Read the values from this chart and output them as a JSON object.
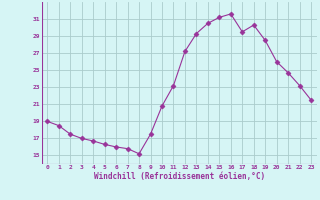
{
  "x": [
    0,
    1,
    2,
    3,
    4,
    5,
    6,
    7,
    8,
    9,
    10,
    11,
    12,
    13,
    14,
    15,
    16,
    17,
    18,
    19,
    20,
    21,
    22,
    23
  ],
  "y": [
    19,
    18.5,
    17.5,
    17,
    16.7,
    16.3,
    16,
    15.8,
    15.2,
    17.5,
    20.8,
    23.2,
    27.2,
    29.3,
    30.5,
    31.2,
    31.6,
    29.5,
    30.3,
    28.5,
    26,
    24.7,
    23.2,
    21.5
  ],
  "line_color": "#993399",
  "marker": "D",
  "marker_size": 2.5,
  "bg_color": "#d6f5f5",
  "grid_color": "#aacccc",
  "xlabel": "Windchill (Refroidissement éolien,°C)",
  "xlabel_color": "#993399",
  "tick_color": "#993399",
  "ylim": [
    14,
    33
  ],
  "yticks": [
    15,
    17,
    19,
    21,
    23,
    25,
    27,
    29,
    31
  ],
  "xlim": [
    -0.5,
    23.5
  ],
  "xticks": [
    0,
    1,
    2,
    3,
    4,
    5,
    6,
    7,
    8,
    9,
    10,
    11,
    12,
    13,
    14,
    15,
    16,
    17,
    18,
    19,
    20,
    21,
    22,
    23
  ]
}
